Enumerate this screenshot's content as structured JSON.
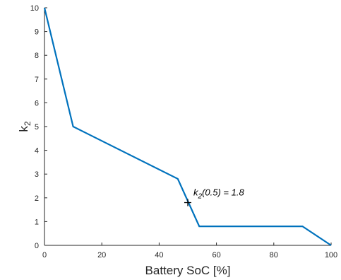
{
  "chart_data": {
    "type": "line",
    "xlabel": "Battery SoC [%]",
    "ylabel_main": "k",
    "ylabel_sub": "2",
    "xlim": [
      0,
      100
    ],
    "ylim": [
      0,
      10
    ],
    "xticks": [
      0,
      20,
      40,
      60,
      80,
      100
    ],
    "yticks": [
      0,
      1,
      2,
      3,
      4,
      5,
      6,
      7,
      8,
      9,
      10
    ],
    "grid": false,
    "series": [
      {
        "color": "#0072BD",
        "x": [
          0,
          10,
          46.5,
          54,
          90,
          100
        ],
        "y": [
          10,
          5,
          2.8,
          0.8,
          0.8,
          0
        ]
      }
    ],
    "annotation": {
      "marker": "plus",
      "x": 50,
      "y": 1.8,
      "text_main": "k",
      "text_sub": "2",
      "text_rest": "(0.5) = 1.8"
    }
  }
}
